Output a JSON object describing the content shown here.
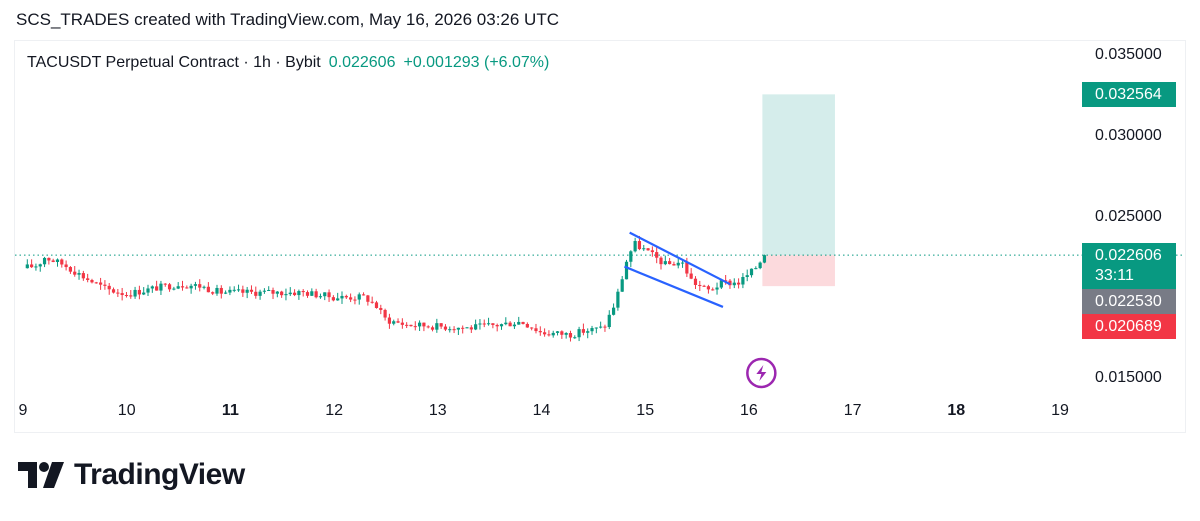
{
  "header": {
    "attribution": "SCS_TRADES created with TradingView.com, May 16, 2026 03:26 UTC"
  },
  "legend": {
    "symbol": "TACUSDT Perpetual Contract · 1h · Bybit",
    "last_price": "0.022606",
    "change": "+0.001293 (+6.07%)"
  },
  "colors": {
    "up": "#089981",
    "down": "#f23645",
    "pattern": "#2962ff",
    "target_zone": "#b2dfdb",
    "stop_zone": "#fcd6d9",
    "gray_badge": "#787b86",
    "icon": "#9c27b0"
  },
  "chart_data": {
    "type": "candlestick",
    "interval": "1h",
    "exchange": "Bybit",
    "x_ticks": [
      {
        "label": "9",
        "bold": false
      },
      {
        "label": "10",
        "bold": false
      },
      {
        "label": "11",
        "bold": true
      },
      {
        "label": "12",
        "bold": false
      },
      {
        "label": "13",
        "bold": false
      },
      {
        "label": "14",
        "bold": false
      },
      {
        "label": "15",
        "bold": false
      },
      {
        "label": "16",
        "bold": false
      },
      {
        "label": "17",
        "bold": false
      },
      {
        "label": "18",
        "bold": true
      },
      {
        "label": "19",
        "bold": false
      }
    ],
    "y_ticks": [
      "0.035000",
      "0.030000",
      "0.025000",
      "0.015000"
    ],
    "y_range": [
      0.0135,
      0.0365
    ],
    "price_badges": [
      {
        "label": "0.032564",
        "value": 0.032564,
        "color": "#089981",
        "sub": ""
      },
      {
        "label": "0.022606",
        "value": 0.022606,
        "color": "#089981",
        "sub": "33:11"
      },
      {
        "label": "0.022530",
        "value": 0.02253,
        "color": "#787b86",
        "sub": ""
      },
      {
        "label": "0.020689",
        "value": 0.020689,
        "color": "#f23645",
        "sub": ""
      }
    ],
    "last_price": 0.022606,
    "position": {
      "entry": 0.022606,
      "target": 0.032564,
      "stop": 0.020689,
      "day_start": 16.13,
      "day_end": 16.83
    },
    "falling_wedge": {
      "upper": [
        [
          14.85,
          0.024
        ],
        [
          15.82,
          0.0208
        ]
      ],
      "lower": [
        [
          14.8,
          0.0219
        ],
        [
          15.75,
          0.0194
        ]
      ]
    },
    "anchor_points": [
      [
        9.0,
        0.0218
      ],
      [
        9.15,
        0.022
      ],
      [
        9.2,
        0.0225
      ],
      [
        9.4,
        0.022
      ],
      [
        9.6,
        0.0212
      ],
      [
        9.8,
        0.0205
      ],
      [
        10.0,
        0.0202
      ],
      [
        10.3,
        0.0206
      ],
      [
        10.5,
        0.0208
      ],
      [
        10.7,
        0.0207
      ],
      [
        10.9,
        0.0203
      ],
      [
        11.2,
        0.0203
      ],
      [
        11.5,
        0.0203
      ],
      [
        11.7,
        0.0203
      ],
      [
        12.0,
        0.02
      ],
      [
        12.3,
        0.02
      ],
      [
        12.4,
        0.0195
      ],
      [
        12.5,
        0.0186
      ],
      [
        12.7,
        0.0183
      ],
      [
        13.0,
        0.0182
      ],
      [
        13.3,
        0.0181
      ],
      [
        13.6,
        0.0183
      ],
      [
        13.8,
        0.0185
      ],
      [
        13.9,
        0.0182
      ],
      [
        14.0,
        0.0178
      ],
      [
        14.3,
        0.0177
      ],
      [
        14.4,
        0.0179
      ],
      [
        14.6,
        0.0181
      ],
      [
        14.7,
        0.0195
      ],
      [
        14.75,
        0.0205
      ],
      [
        14.83,
        0.0225
      ],
      [
        14.9,
        0.0233
      ],
      [
        15.0,
        0.0229
      ],
      [
        15.2,
        0.022
      ],
      [
        15.35,
        0.0222
      ],
      [
        15.45,
        0.021
      ],
      [
        15.6,
        0.0204
      ],
      [
        15.75,
        0.0209
      ],
      [
        15.9,
        0.0209
      ],
      [
        16.05,
        0.0217
      ],
      [
        16.15,
        0.02261
      ]
    ],
    "candle_count": 172,
    "seed": 17
  }
}
